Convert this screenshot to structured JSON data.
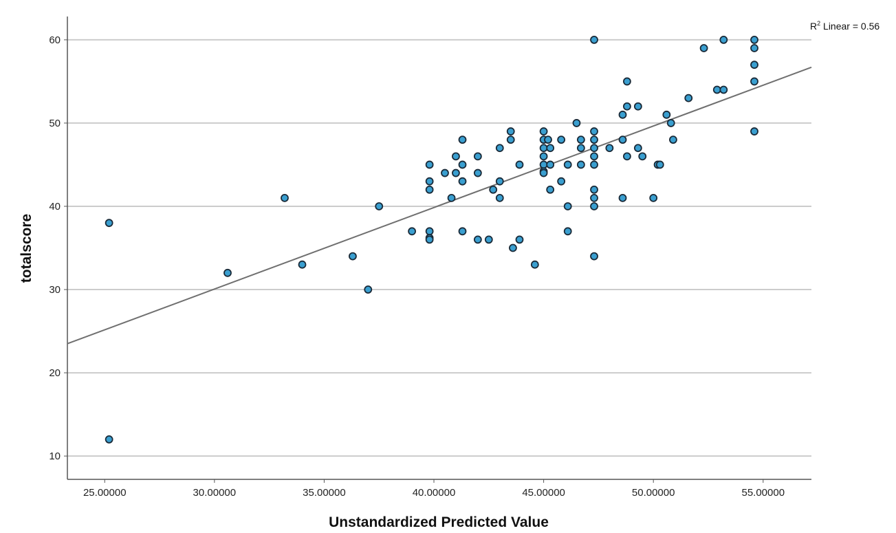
{
  "colors": {
    "point_fill": "#3a9fd0",
    "point_stroke": "#1a2a38",
    "fit_line": "#6f6f6f",
    "gridline": "#cccccc",
    "axis": "#555555"
  },
  "chart_data": {
    "type": "scatter",
    "xlabel": "Unstandardized Predicted Value",
    "ylabel": "totalscore",
    "xlim": [
      23.3,
      57.2
    ],
    "ylim": [
      7.2,
      62.8
    ],
    "x_ticks": [
      25,
      30,
      35,
      40,
      45,
      50,
      55
    ],
    "x_tick_labels": [
      "25.00000",
      "30.00000",
      "35.00000",
      "40.00000",
      "45.00000",
      "50.00000",
      "55.00000"
    ],
    "y_ticks": [
      10,
      20,
      30,
      40,
      50,
      60
    ],
    "y_tick_labels": [
      "10",
      "20",
      "30",
      "40",
      "50",
      "60"
    ],
    "grid": "horizontal",
    "fit_line": {
      "label_prefix": "R",
      "label_sup": "2",
      "label_suffix": " Linear = 0.56",
      "x1": 23.3,
      "y1": 23.5,
      "x2": 57.2,
      "y2": 56.7
    },
    "points": [
      [
        25.2,
        38
      ],
      [
        25.2,
        12
      ],
      [
        30.6,
        32
      ],
      [
        33.2,
        41
      ],
      [
        34.0,
        33
      ],
      [
        36.3,
        34
      ],
      [
        37.0,
        30
      ],
      [
        37.5,
        40
      ],
      [
        39.0,
        37
      ],
      [
        39.8,
        45
      ],
      [
        39.8,
        43
      ],
      [
        39.8,
        42
      ],
      [
        39.8,
        37
      ],
      [
        39.8,
        36.2
      ],
      [
        39.8,
        36
      ],
      [
        40.5,
        44
      ],
      [
        40.8,
        41
      ],
      [
        41.0,
        46
      ],
      [
        41.0,
        44
      ],
      [
        41.3,
        48
      ],
      [
        41.3,
        45
      ],
      [
        41.3,
        43
      ],
      [
        41.3,
        37
      ],
      [
        42.0,
        46
      ],
      [
        42.0,
        44
      ],
      [
        42.0,
        36
      ],
      [
        42.5,
        36
      ],
      [
        42.7,
        42
      ],
      [
        43.0,
        47
      ],
      [
        43.0,
        43
      ],
      [
        43.0,
        41
      ],
      [
        43.5,
        49
      ],
      [
        43.5,
        48
      ],
      [
        43.6,
        35
      ],
      [
        43.9,
        45
      ],
      [
        43.9,
        36
      ],
      [
        44.6,
        33
      ],
      [
        45.0,
        49
      ],
      [
        45.0,
        48
      ],
      [
        45.0,
        47
      ],
      [
        45.0,
        46
      ],
      [
        45.0,
        45
      ],
      [
        45.0,
        44.2
      ],
      [
        45.0,
        44
      ],
      [
        45.2,
        48
      ],
      [
        45.3,
        47
      ],
      [
        45.3,
        45
      ],
      [
        45.3,
        42
      ],
      [
        45.8,
        48
      ],
      [
        45.8,
        43
      ],
      [
        46.1,
        45
      ],
      [
        46.1,
        40
      ],
      [
        46.1,
        37
      ],
      [
        46.5,
        50
      ],
      [
        46.7,
        48
      ],
      [
        46.7,
        47
      ],
      [
        46.7,
        45
      ],
      [
        47.3,
        60
      ],
      [
        47.3,
        49
      ],
      [
        47.3,
        48
      ],
      [
        47.3,
        47
      ],
      [
        47.3,
        46
      ],
      [
        47.3,
        45
      ],
      [
        47.3,
        42
      ],
      [
        47.3,
        41
      ],
      [
        47.3,
        40
      ],
      [
        47.3,
        34
      ],
      [
        48.0,
        47
      ],
      [
        48.6,
        51
      ],
      [
        48.6,
        48
      ],
      [
        48.6,
        41
      ],
      [
        48.8,
        55
      ],
      [
        48.8,
        52
      ],
      [
        48.8,
        46
      ],
      [
        49.3,
        52
      ],
      [
        49.3,
        47
      ],
      [
        49.5,
        46
      ],
      [
        50.0,
        41
      ],
      [
        50.2,
        45
      ],
      [
        50.3,
        45
      ],
      [
        50.6,
        51
      ],
      [
        50.8,
        50
      ],
      [
        50.9,
        48
      ],
      [
        51.6,
        53
      ],
      [
        52.3,
        59
      ],
      [
        52.9,
        54
      ],
      [
        53.2,
        54
      ],
      [
        53.2,
        60
      ],
      [
        54.6,
        60
      ],
      [
        54.6,
        59
      ],
      [
        54.6,
        57
      ],
      [
        54.6,
        55
      ],
      [
        54.6,
        49
      ]
    ]
  }
}
